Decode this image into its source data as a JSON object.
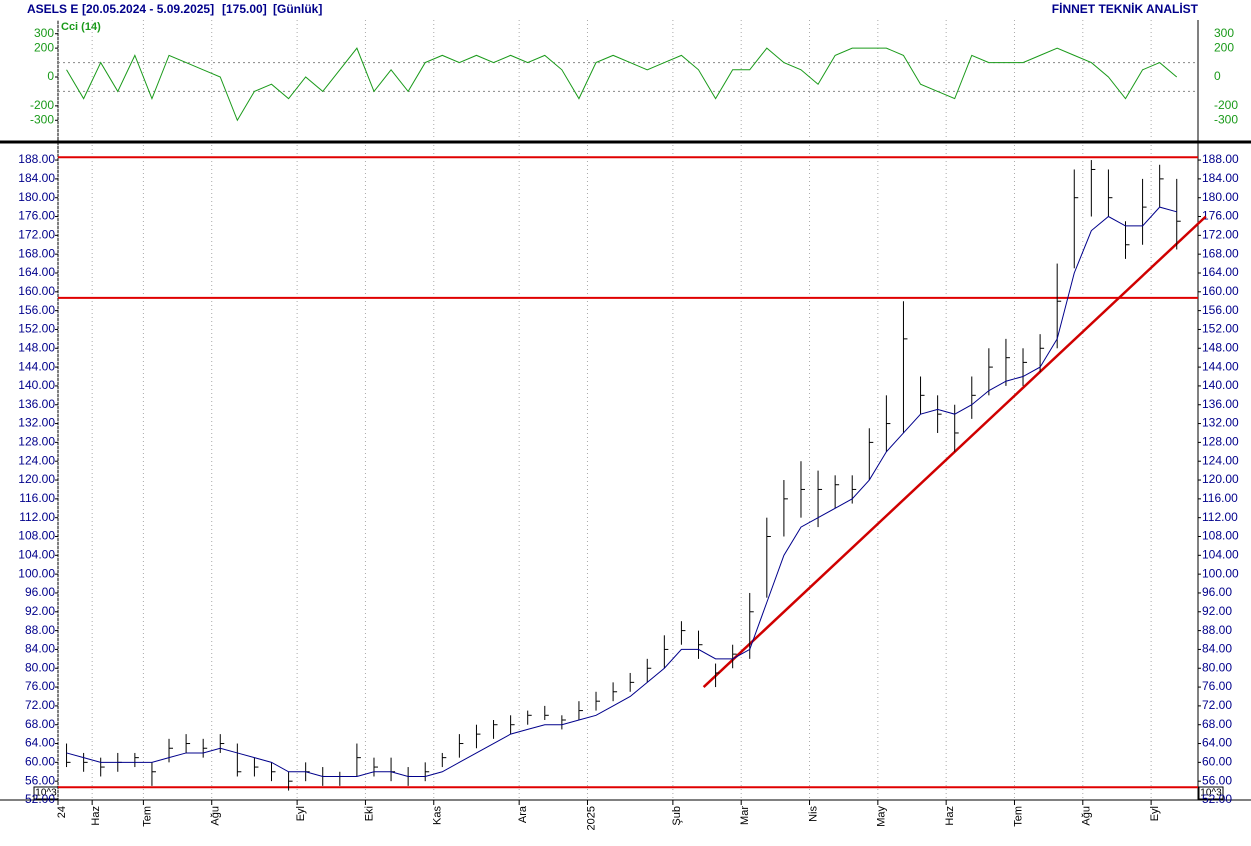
{
  "header": {
    "symbol": "ASELS E",
    "range": "[20.05.2024 - 5.09.2025]",
    "last": "[175.00]",
    "period": "[Günlük]",
    "brand": "FİNNET TEKNİK ANALİST"
  },
  "chart_data": {
    "type": "ohlc",
    "categories": [
      "24",
      null,
      "Haz",
      null,
      null,
      "Tem",
      null,
      null,
      null,
      "Ağu",
      null,
      null,
      null,
      null,
      "Eyl",
      null,
      null,
      null,
      "Eki",
      null,
      null,
      null,
      "Kas",
      null,
      null,
      null,
      null,
      "Ara",
      null,
      null,
      null,
      "2025",
      null,
      null,
      null,
      null,
      "Şub",
      null,
      null,
      null,
      "Mar",
      null,
      null,
      null,
      "Nis",
      null,
      null,
      null,
      "May",
      null,
      null,
      null,
      "Haz",
      null,
      null,
      null,
      "Tem",
      null,
      null,
      null,
      "Ağu",
      null,
      null,
      null,
      "Eyl",
      null
    ],
    "ohlc": {
      "color": "#000000",
      "high": [
        64,
        62,
        61,
        62,
        62,
        60,
        65,
        66,
        65,
        66,
        64,
        61,
        60,
        58,
        60,
        59,
        58,
        64,
        61,
        61,
        59,
        60,
        62,
        66,
        68,
        69,
        70,
        71,
        72,
        70,
        73,
        75,
        77,
        79,
        82,
        87,
        90,
        88,
        81,
        85,
        96,
        112,
        120,
        124,
        122,
        121,
        121,
        131,
        138,
        158,
        142,
        138,
        136,
        142,
        148,
        150,
        148,
        151,
        166,
        186,
        188,
        186,
        175,
        184,
        187,
        184
      ],
      "low": [
        59,
        58,
        57,
        58,
        59,
        55,
        60,
        62,
        61,
        62,
        57,
        57,
        56,
        54,
        56,
        55,
        55,
        57,
        57,
        56,
        55,
        56,
        59,
        61,
        63,
        65,
        66,
        68,
        69,
        67,
        69,
        71,
        73,
        75,
        77,
        80,
        85,
        82,
        76,
        80,
        82,
        95,
        108,
        112,
        110,
        114,
        115,
        120,
        126,
        130,
        134,
        130,
        126,
        133,
        138,
        140,
        140,
        143,
        148,
        165,
        176,
        176,
        167,
        170,
        178,
        169
      ],
      "close": [
        60,
        60,
        59,
        60,
        61,
        58,
        63,
        64,
        63,
        64,
        58,
        59,
        58,
        56,
        58,
        57,
        57,
        61,
        59,
        58,
        57,
        58,
        61,
        64,
        66,
        68,
        68,
        70,
        70,
        69,
        71,
        73,
        75,
        77,
        80,
        84,
        88,
        85,
        79,
        83,
        92,
        108,
        116,
        118,
        118,
        119,
        118,
        128,
        132,
        150,
        138,
        134,
        130,
        138,
        144,
        146,
        145,
        148,
        158,
        180,
        186,
        180,
        170,
        178,
        184,
        175
      ]
    },
    "moving_average": {
      "color": "#00008b",
      "values": [
        62,
        61,
        60,
        60,
        60,
        60,
        61,
        62,
        62,
        63,
        62,
        61,
        60,
        58,
        58,
        57,
        57,
        57,
        58,
        58,
        57,
        57,
        58,
        60,
        62,
        64,
        66,
        67,
        68,
        68,
        69,
        70,
        72,
        74,
        77,
        80,
        84,
        84,
        82,
        82,
        84,
        94,
        104,
        110,
        112,
        114,
        116,
        120,
        126,
        130,
        134,
        135,
        134,
        136,
        139,
        141,
        142,
        144,
        150,
        164,
        173,
        176,
        174,
        174,
        178,
        177
      ]
    },
    "levels": {
      "color": "#e00000",
      "values": [
        188.6,
        158.7,
        54.7
      ]
    },
    "trendline": {
      "color": "#d00000",
      "from": [
        37.3,
        76
      ],
      "to": [
        66.7,
        176
      ]
    },
    "ylim": [
      52,
      191.2
    ],
    "yticks": [
      {
        "value": 52,
        "label": "52.00"
      },
      {
        "value": 56,
        "label": "56.00"
      },
      {
        "value": 60,
        "label": "60.00"
      },
      {
        "value": 64,
        "label": "64.00"
      },
      {
        "value": 68,
        "label": "68.00"
      },
      {
        "value": 72,
        "label": "72.00"
      },
      {
        "value": 76,
        "label": "76.00"
      },
      {
        "value": 80,
        "label": "80.00"
      },
      {
        "value": 84,
        "label": "84.00"
      },
      {
        "value": 88,
        "label": "88.00"
      },
      {
        "value": 92,
        "label": "92.00"
      },
      {
        "value": 96,
        "label": "96.00"
      },
      {
        "value": 100,
        "label": "100.00"
      },
      {
        "value": 104,
        "label": "104.00"
      },
      {
        "value": 108,
        "label": "108.00"
      },
      {
        "value": 112,
        "label": "112.00"
      },
      {
        "value": 116,
        "label": "116.00"
      },
      {
        "value": 120,
        "label": "120.00"
      },
      {
        "value": 124,
        "label": "124.00"
      },
      {
        "value": 128,
        "label": "128.00"
      },
      {
        "value": 132,
        "label": "132.00"
      },
      {
        "value": 136,
        "label": "136.00"
      },
      {
        "value": 140,
        "label": "140.00"
      },
      {
        "value": 144,
        "label": "144.00"
      },
      {
        "value": 148,
        "label": "148.00"
      },
      {
        "value": 152,
        "label": "152.00"
      },
      {
        "value": 156,
        "label": "156.00"
      },
      {
        "value": 160,
        "label": "160.00"
      },
      {
        "value": 164,
        "label": "164.00"
      },
      {
        "value": 168,
        "label": "168.00"
      },
      {
        "value": 172,
        "label": "172.00"
      },
      {
        "value": 176,
        "label": "176.00"
      },
      {
        "value": 180,
        "label": "180.00"
      },
      {
        "value": 184,
        "label": "184.00"
      },
      {
        "value": 188,
        "label": "188.00"
      }
    ],
    "unit_label": "10^3",
    "cci": {
      "title": "Cci (14)",
      "color": "#1a9a1a",
      "values": [
        50,
        -150,
        100,
        -100,
        150,
        -150,
        150,
        100,
        50,
        0,
        -300,
        -100,
        -50,
        -150,
        0,
        -100,
        50,
        200,
        -100,
        50,
        -100,
        100,
        150,
        100,
        150,
        100,
        150,
        100,
        150,
        50,
        -150,
        100,
        150,
        100,
        50,
        100,
        150,
        50,
        -150,
        50,
        50,
        200,
        100,
        50,
        -50,
        150,
        200,
        200,
        200,
        150,
        -50,
        -100,
        -150,
        150,
        100,
        100,
        100,
        150,
        200,
        150,
        100,
        0,
        -150,
        50,
        100,
        0
      ],
      "ylim": [
        -395,
        395
      ],
      "yticks": [
        -300,
        -200,
        0,
        200,
        300
      ],
      "levels": [
        100,
        -100
      ]
    }
  }
}
